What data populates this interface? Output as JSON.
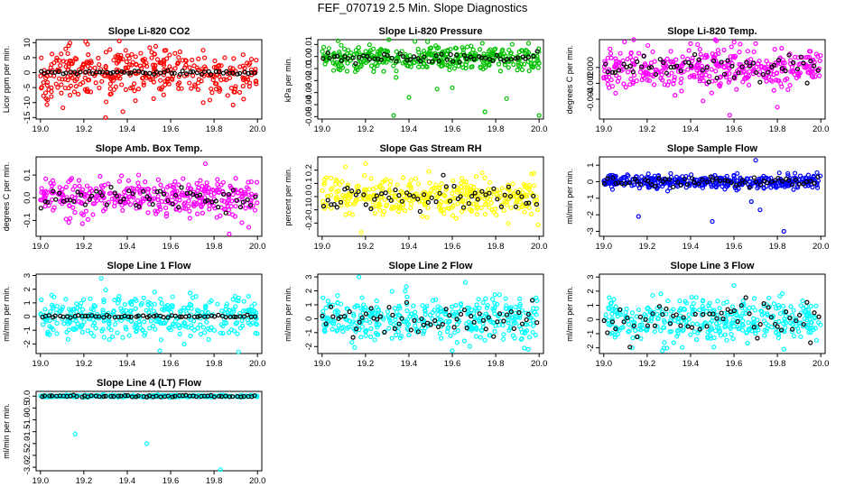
{
  "title": "FEF_070719  2.5 Min. Slope Diagnostics",
  "chart_data": [
    {
      "type": "scatter",
      "title": "Slope Li-820 CO2",
      "ylabel": "Licor ppm per min.",
      "xlim": [
        18.98,
        20.02
      ],
      "ylim": [
        -15.5,
        11
      ],
      "xticks": [
        19.0,
        19.2,
        19.4,
        19.6,
        19.8,
        20.0
      ],
      "yticks": [
        -15,
        -10,
        -5,
        0,
        5,
        10
      ],
      "colors": {
        "main": "#ff0000",
        "ref": "#000000"
      },
      "center": 0,
      "spread_main": 4,
      "spread_ref": 0.3,
      "n_main": 380,
      "n_ref": 60,
      "outliers": [
        [
          19.05,
          -8
        ],
        [
          19.3,
          -15
        ],
        [
          19.22,
          6
        ],
        [
          19.38,
          -13
        ],
        [
          19.75,
          -10
        ],
        [
          19.13,
          9
        ]
      ]
    },
    {
      "type": "scatter",
      "title": "Slope Li-820 Pressure",
      "ylabel": "kPa per min.",
      "xlim": [
        18.98,
        20.02
      ],
      "ylim": [
        -0.052,
        0.014
      ],
      "xticks": [
        19.0,
        19.2,
        19.4,
        19.6,
        19.8,
        20.0
      ],
      "yticks": [
        -0.05,
        -0.04,
        -0.03,
        -0.02,
        -0.01,
        0.0,
        0.01
      ],
      "colors": {
        "main": "#00c000",
        "ref": "#000000"
      },
      "center": -0.001,
      "spread_main": 0.005,
      "spread_ref": 0.002,
      "n_main": 380,
      "n_ref": 60,
      "outliers": [
        [
          19.33,
          -0.049
        ],
        [
          19.75,
          -0.046
        ],
        [
          20.0,
          -0.049
        ],
        [
          19.85,
          -0.035
        ],
        [
          19.4,
          -0.034
        ],
        [
          19.53,
          -0.027
        ],
        [
          19.6,
          -0.026
        ]
      ]
    },
    {
      "type": "scatter",
      "title": "Slope Li-820 Temp.",
      "ylabel": "degrees C per min.",
      "xlim": [
        18.98,
        20.02
      ],
      "ylim": [
        -0.0065,
        0.0035
      ],
      "xticks": [
        19.0,
        19.2,
        19.4,
        19.6,
        19.8,
        20.0
      ],
      "yticks": [
        -0.004,
        -0.002,
        0.0
      ],
      "colors": {
        "main": "#ff00ff",
        "ref": "#000000"
      },
      "center": 0.0,
      "spread_main": 0.0013,
      "spread_ref": 0.0008,
      "n_main": 380,
      "n_ref": 60,
      "outliers": [
        [
          19.58,
          -0.006
        ],
        [
          19.4,
          0.003
        ],
        [
          19.7,
          0.003
        ],
        [
          19.8,
          -0.005
        ]
      ]
    },
    {
      "type": "scatter",
      "title": "Slope Amb. Box Temp.",
      "ylabel": "degrees C per min.",
      "xlim": [
        18.98,
        20.02
      ],
      "ylim": [
        -0.17,
        0.18
      ],
      "xticks": [
        19.0,
        19.2,
        19.4,
        19.6,
        19.8,
        20.0
      ],
      "yticks": [
        -0.1,
        0.0,
        0.1
      ],
      "colors": {
        "main": "#ff00ff",
        "ref": "#000000"
      },
      "center": 0.005,
      "spread_main": 0.04,
      "spread_ref": 0.025,
      "n_main": 380,
      "n_ref": 60,
      "outliers": [
        [
          19.87,
          -0.16
        ],
        [
          19.76,
          0.15
        ],
        [
          19.96,
          -0.13
        ]
      ]
    },
    {
      "type": "scatter",
      "title": "Slope Gas Stream RH",
      "ylabel": "percent per min.",
      "xlim": [
        18.98,
        20.02
      ],
      "ylim": [
        -0.3,
        0.3
      ],
      "xticks": [
        19.0,
        19.2,
        19.4,
        19.6,
        19.8,
        20.0
      ],
      "yticks": [
        -0.2,
        -0.1,
        0.0,
        0.1,
        0.2
      ],
      "colors": {
        "main": "#ffff00",
        "ref": "#000000"
      },
      "center": 0.0,
      "spread_main": 0.07,
      "spread_ref": 0.05,
      "n_main": 380,
      "n_ref": 60,
      "outliers": [
        [
          19.18,
          -0.27
        ],
        [
          19.2,
          0.25
        ]
      ]
    },
    {
      "type": "scatter",
      "title": "Slope Sample Flow",
      "ylabel": "ml/min per min.",
      "xlim": [
        18.98,
        20.02
      ],
      "ylim": [
        -3.3,
        1.5
      ],
      "xticks": [
        19.0,
        19.2,
        19.4,
        19.6,
        19.8,
        20.0
      ],
      "yticks": [
        -3,
        -2,
        -1,
        0,
        1
      ],
      "colors": {
        "main": "#0000ff",
        "ref": "#000000"
      },
      "center": 0.0,
      "spread_main": 0.2,
      "spread_ref": 0.15,
      "n_main": 380,
      "n_ref": 60,
      "outliers": [
        [
          19.16,
          -2.1
        ],
        [
          19.5,
          -2.4
        ],
        [
          19.7,
          1.3
        ],
        [
          19.72,
          -1.7
        ],
        [
          19.83,
          -3.0
        ],
        [
          19.68,
          -1.2
        ]
      ]
    },
    {
      "type": "scatter",
      "title": "Slope Line 1 Flow",
      "ylabel": "ml/min per min.",
      "xlim": [
        18.98,
        20.02
      ],
      "ylim": [
        -2.7,
        3.1
      ],
      "xticks": [
        19.0,
        19.2,
        19.4,
        19.6,
        19.8,
        20.0
      ],
      "yticks": [
        -2,
        -1,
        0,
        1,
        2,
        3
      ],
      "colors": {
        "main": "#00ffff",
        "ref": "#000000"
      },
      "center": 0.0,
      "spread_main": 0.75,
      "spread_ref": 0.05,
      "n_main": 380,
      "n_ref": 60,
      "outliers": [
        [
          19.55,
          -2.5
        ],
        [
          19.28,
          2.8
        ]
      ]
    },
    {
      "type": "scatter",
      "title": "Slope Line 2 Flow",
      "ylabel": "ml/min per min.",
      "xlim": [
        18.98,
        20.02
      ],
      "ylim": [
        -2.5,
        3.2
      ],
      "xticks": [
        19.0,
        19.2,
        19.4,
        19.6,
        19.8,
        20.0
      ],
      "yticks": [
        -2,
        -1,
        0,
        1,
        2,
        3
      ],
      "colors": {
        "main": "#00ffff",
        "ref": "#000000"
      },
      "center": 0.0,
      "spread_main": 0.75,
      "spread_ref": 0.6,
      "n_main": 380,
      "n_ref": 60,
      "outliers": [
        [
          19.17,
          3.0
        ],
        [
          19.6,
          -2.3
        ],
        [
          19.95,
          -2.2
        ]
      ]
    },
    {
      "type": "scatter",
      "title": "Slope Line 3 Flow",
      "ylabel": "ml/min per min.",
      "xlim": [
        18.98,
        20.02
      ],
      "ylim": [
        -2.4,
        3.2
      ],
      "xticks": [
        19.0,
        19.2,
        19.4,
        19.6,
        19.8,
        20.0
      ],
      "yticks": [
        -2,
        -1,
        0,
        1,
        2,
        3
      ],
      "colors": {
        "main": "#00ffff",
        "ref": "#000000"
      },
      "center": 0.0,
      "spread_main": 0.75,
      "spread_ref": 0.6,
      "n_main": 380,
      "n_ref": 60,
      "outliers": [
        [
          19.27,
          -2.2
        ],
        [
          19.6,
          2.4
        ],
        [
          19.83,
          -2.1
        ]
      ]
    },
    {
      "type": "scatter",
      "title": "Slope Line 4 (LT) Flow",
      "ylabel": "ml/min per min.",
      "xlim": [
        18.98,
        20.02
      ],
      "ylim": [
        -3.15,
        0.2
      ],
      "xticks": [
        19.0,
        19.2,
        19.4,
        19.6,
        19.8,
        20.0
      ],
      "yticks": [
        -3.0,
        -2.5,
        -2.0,
        -1.5,
        -1.0,
        -0.5,
        0.0
      ],
      "colors": {
        "main": "#00ffff",
        "ref": "#000000"
      },
      "center": 0.0,
      "spread_main": 0.02,
      "spread_ref": 0.02,
      "n_main": 300,
      "n_ref": 60,
      "outliers": [
        [
          19.16,
          -1.6
        ],
        [
          19.49,
          -2.0
        ],
        [
          19.83,
          -3.1
        ]
      ]
    }
  ]
}
